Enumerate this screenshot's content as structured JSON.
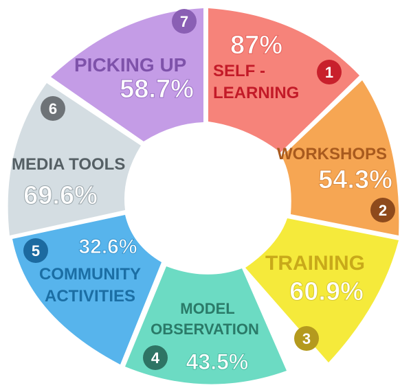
{
  "segments": [
    {
      "number": "1",
      "name": "SELF -",
      "name2": "LEARNING",
      "percent": "87%",
      "fill": "#f6837a",
      "label_color": "#c31a28",
      "badge_color": "#c8202c"
    },
    {
      "number": "2",
      "name": "WORKSHOPS",
      "name2": "",
      "percent": "54.3%",
      "fill": "#f6a653",
      "label_color": "#a85a1e",
      "badge_color": "#8e4a1c"
    },
    {
      "number": "3",
      "name": "TRAINING",
      "name2": "",
      "percent": "60.9%",
      "fill": "#f5ea3b",
      "label_color": "#c8a91a",
      "badge_color": "#b49a1e"
    },
    {
      "number": "4",
      "name": "MODEL",
      "name2": "OBSERVATION",
      "percent": "43.5%",
      "fill": "#6cdbc3",
      "label_color": "#2a7a68",
      "badge_color": "#2e7464"
    },
    {
      "number": "5",
      "name": "COMMUNITY",
      "name2": "ACTIVITIES",
      "percent": "32.6%",
      "fill": "#57b4ec",
      "label_color": "#1b6ea4",
      "badge_color": "#1c6aa0"
    },
    {
      "number": "6",
      "name": "MEDIA TOOLS",
      "name2": "",
      "percent": "69.6%",
      "fill": "#d4dde2",
      "label_color": "#555f64",
      "badge_color": "#6e7377"
    },
    {
      "number": "7",
      "name": "PICKING UP",
      "name2": "",
      "percent": "58.7%",
      "fill": "#c49ce6",
      "label_color": "#7e52aa",
      "badge_color": "#8a5fb4"
    }
  ]
}
